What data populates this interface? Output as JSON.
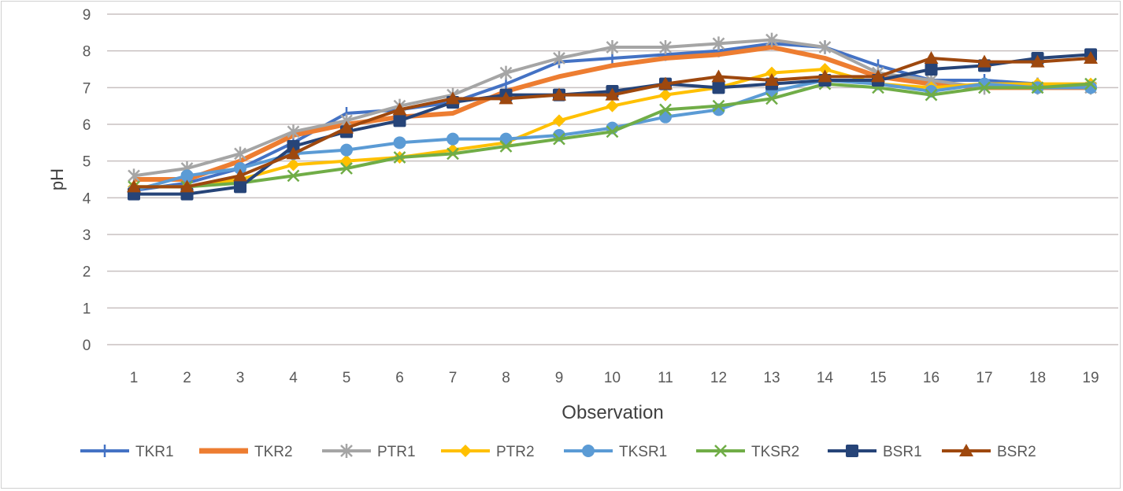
{
  "chart_data": {
    "type": "line",
    "title": "",
    "xlabel": "Observation",
    "ylabel": "pH",
    "ylim": [
      0,
      9
    ],
    "yticks": [
      0,
      1,
      2,
      3,
      4,
      5,
      6,
      7,
      8,
      9
    ],
    "categories": [
      "1",
      "2",
      "3",
      "4",
      "5",
      "6",
      "7",
      "8",
      "9",
      "10",
      "11",
      "12",
      "13",
      "14",
      "15",
      "16",
      "17",
      "18",
      "19"
    ],
    "grid": "horizontal",
    "legend_position": "bottom",
    "series": [
      {
        "name": "TKR1",
        "color": "#4472C4",
        "marker": "plus",
        "values": [
          4.2,
          4.4,
          4.8,
          5.5,
          6.3,
          6.4,
          6.6,
          7.1,
          7.7,
          7.8,
          7.9,
          8.0,
          8.2,
          8.1,
          7.6,
          7.2,
          7.2,
          7.1,
          7.0
        ]
      },
      {
        "name": "TKR2",
        "color": "#ED7D31",
        "marker": "none",
        "values": [
          4.5,
          4.5,
          5.0,
          5.7,
          6.0,
          6.2,
          6.3,
          6.9,
          7.3,
          7.6,
          7.8,
          7.9,
          8.1,
          7.8,
          7.3,
          7.1,
          7.0,
          7.0,
          7.0
        ]
      },
      {
        "name": "PTR1",
        "color": "#A5A5A5",
        "marker": "star",
        "values": [
          4.6,
          4.8,
          5.2,
          5.8,
          6.1,
          6.5,
          6.8,
          7.4,
          7.8,
          8.1,
          8.1,
          8.2,
          8.3,
          8.1,
          7.4,
          7.2,
          7.0,
          7.0,
          7.0
        ]
      },
      {
        "name": "PTR2",
        "color": "#FFC000",
        "marker": "diamond",
        "values": [
          4.3,
          4.3,
          4.5,
          4.9,
          5.0,
          5.1,
          5.3,
          5.5,
          6.1,
          6.5,
          6.8,
          7.0,
          7.4,
          7.5,
          7.1,
          7.0,
          7.1,
          7.1,
          7.1
        ]
      },
      {
        "name": "TKSR1",
        "color": "#5B9BD5",
        "marker": "circle",
        "values": [
          4.2,
          4.6,
          4.8,
          5.2,
          5.3,
          5.5,
          5.6,
          5.6,
          5.7,
          5.9,
          6.2,
          6.4,
          6.9,
          7.2,
          7.1,
          6.9,
          7.1,
          7.0,
          7.0
        ]
      },
      {
        "name": "TKSR2",
        "color": "#70AD47",
        "marker": "x",
        "values": [
          4.3,
          4.3,
          4.4,
          4.6,
          4.8,
          5.1,
          5.2,
          5.4,
          5.6,
          5.8,
          6.4,
          6.5,
          6.7,
          7.1,
          7.0,
          6.8,
          7.0,
          7.0,
          7.1
        ]
      },
      {
        "name": "BSR1",
        "color": "#264478",
        "marker": "square",
        "values": [
          4.1,
          4.1,
          4.3,
          5.4,
          5.8,
          6.1,
          6.6,
          6.8,
          6.8,
          6.9,
          7.1,
          7.0,
          7.1,
          7.2,
          7.2,
          7.5,
          7.6,
          7.8,
          7.9
        ]
      },
      {
        "name": "BSR2",
        "color": "#9E480E",
        "marker": "triangle",
        "values": [
          4.3,
          4.3,
          4.6,
          5.2,
          5.9,
          6.4,
          6.7,
          6.7,
          6.8,
          6.8,
          7.1,
          7.3,
          7.2,
          7.3,
          7.3,
          7.8,
          7.7,
          7.7,
          7.8
        ]
      }
    ]
  }
}
